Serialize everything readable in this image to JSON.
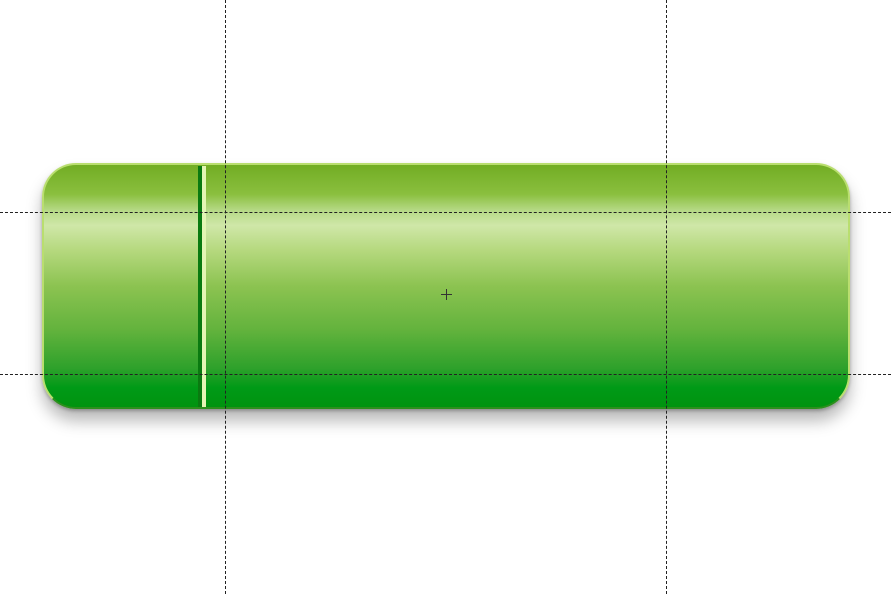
{
  "canvas": {
    "background": "#ffffff",
    "guide_color": "#222222"
  },
  "button": {
    "fill_top": "#72ad24",
    "fill_highlight": "#cfe7a8",
    "fill_bottom": "#00930f",
    "border_color": "#b9de6f",
    "divider_dark": "#0a7a10",
    "divider_light": "#e4f5b4"
  },
  "cursor": {
    "icon": "crosshair-icon"
  }
}
